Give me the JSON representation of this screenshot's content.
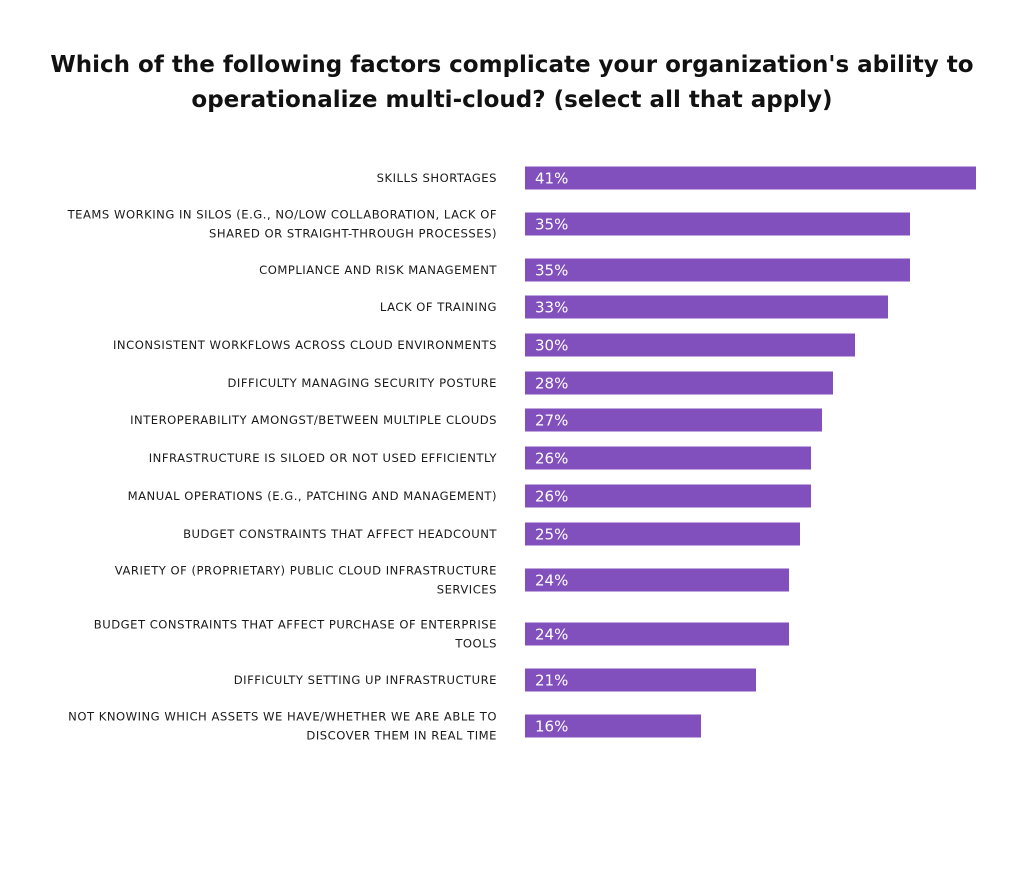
{
  "chart_data": {
    "type": "bar",
    "orientation": "horizontal",
    "title_lines": [
      "Which of the following factors complicate your organization's ability to",
      "operationalize multi-cloud? (select all that apply)"
    ],
    "categories": [
      [
        "SKILLS SHORTAGES"
      ],
      [
        "TEAMS WORKING IN SILOS (E.G., NO/LOW COLLABORATION, LACK OF",
        "SHARED OR STRAIGHT-THROUGH PROCESSES)"
      ],
      [
        "COMPLIANCE AND RISK MANAGEMENT"
      ],
      [
        "LACK OF TRAINING"
      ],
      [
        "INCONSISTENT WORKFLOWS ACROSS CLOUD ENVIRONMENTS"
      ],
      [
        "DIFFICULTY MANAGING SECURITY POSTURE"
      ],
      [
        "INTEROPERABILITY AMONGST/BETWEEN MULTIPLE CLOUDS"
      ],
      [
        "INFRASTRUCTURE IS SILOED OR NOT USED EFFICIENTLY"
      ],
      [
        "MANUAL OPERATIONS (E.G., PATCHING AND MANAGEMENT)"
      ],
      [
        "BUDGET CONSTRAINTS THAT AFFECT HEADCOUNT"
      ],
      [
        "VARIETY OF (PROPRIETARY) PUBLIC CLOUD INFRASTRUCTURE",
        "SERVICES"
      ],
      [
        "BUDGET CONSTRAINTS THAT AFFECT PURCHASE OF ENTERPRISE",
        "TOOLS"
      ],
      [
        "DIFFICULTY SETTING UP INFRASTRUCTURE"
      ],
      [
        "NOT KNOWING WHICH ASSETS WE HAVE/WHETHER WE ARE ABLE TO",
        "DISCOVER THEM IN REAL TIME"
      ]
    ],
    "values": [
      41,
      35,
      35,
      33,
      30,
      28,
      27,
      26,
      26,
      25,
      24,
      24,
      21,
      16
    ],
    "value_labels": [
      "41%",
      "35%",
      "35%",
      "33%",
      "30%",
      "28%",
      "27%",
      "26%",
      "26%",
      "25%",
      "24%",
      "24%",
      "21%",
      "16%"
    ],
    "unit": "%",
    "bar_color": "#8150bc",
    "grid": false,
    "legend": "none"
  }
}
